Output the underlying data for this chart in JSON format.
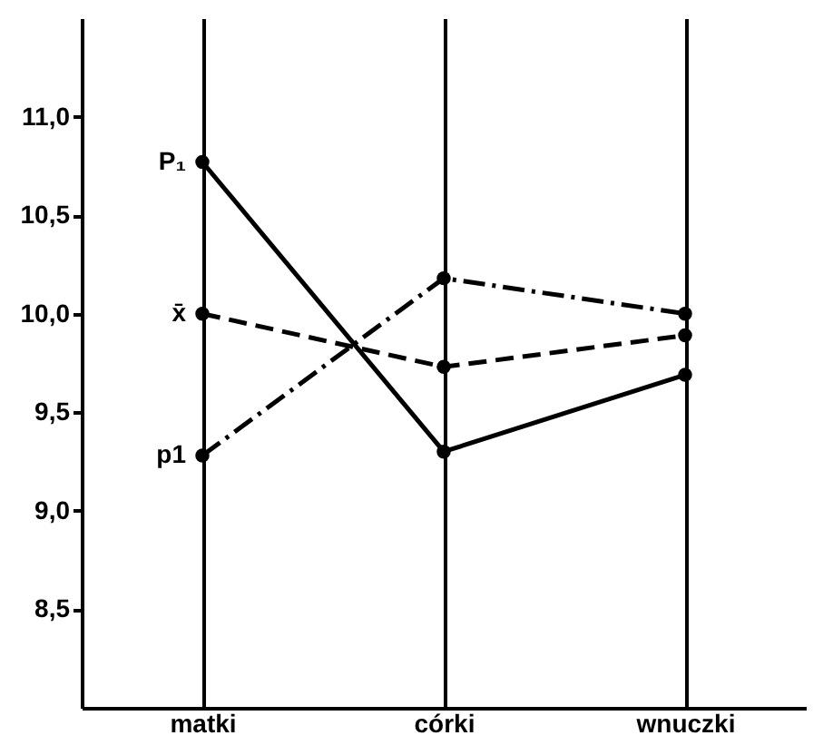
{
  "chart_data": {
    "type": "line",
    "categories": [
      "matki",
      "córki",
      "wnuczki"
    ],
    "series": [
      {
        "name": "P₁",
        "color": "#000000",
        "values": [
          10.77,
          9.3,
          9.69
        ],
        "line_style": "solid"
      },
      {
        "name": "x̄",
        "color": "#000000",
        "values": [
          10.0,
          9.73,
          9.89
        ],
        "line_style": "dashed"
      },
      {
        "name": "p1",
        "color": "#000000",
        "values": [
          9.28,
          10.18,
          10.0
        ],
        "line_style": "dashdot"
      }
    ],
    "ylim": [
      8.0,
      11.5
    ],
    "yticks": [
      {
        "value": 8.5,
        "label": "8,5"
      },
      {
        "value": 9.0,
        "label": "9,0"
      },
      {
        "value": 9.5,
        "label": "9,5"
      },
      {
        "value": 10.0,
        "label": "10,0"
      },
      {
        "value": 10.5,
        "label": "10,5"
      },
      {
        "value": 11.0,
        "label": "11,0"
      }
    ],
    "grid": "x",
    "marker": "circle",
    "legend": false
  }
}
